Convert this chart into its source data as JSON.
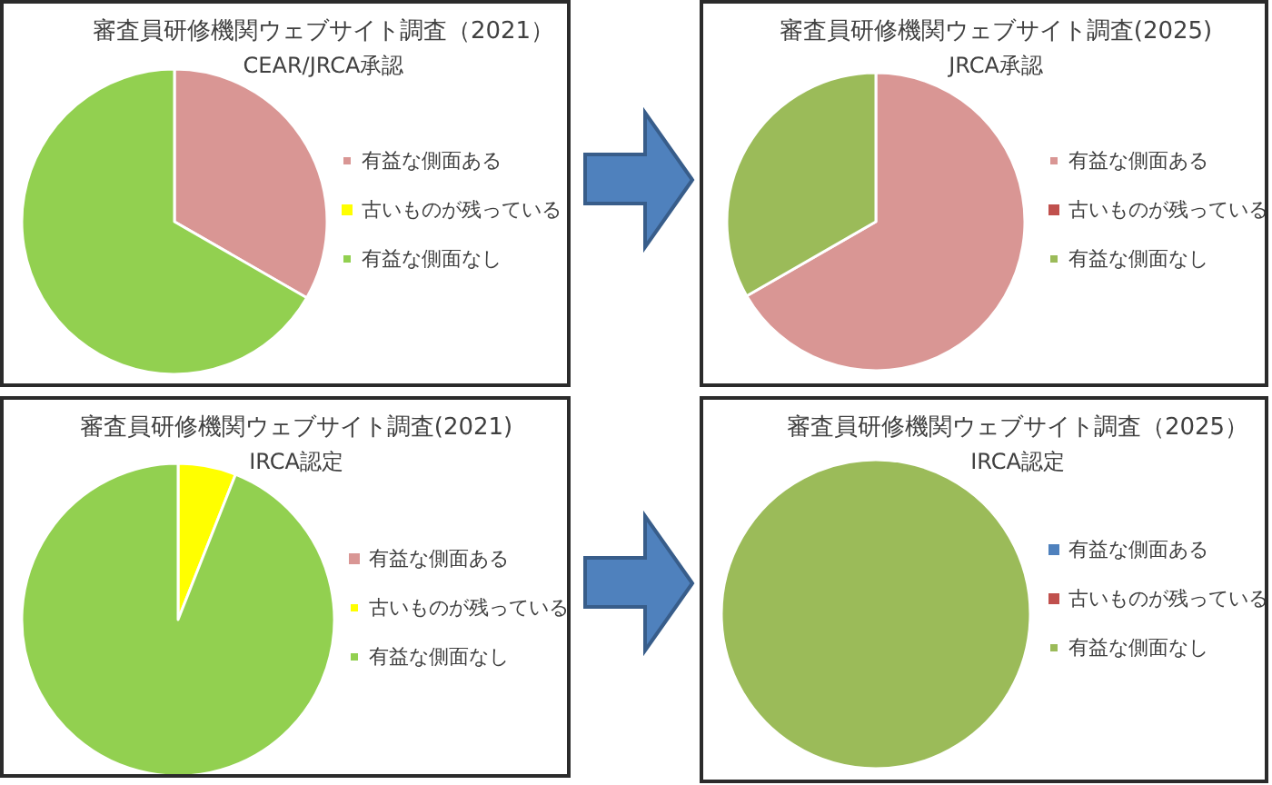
{
  "chart_data": [
    {
      "type": "pie",
      "title": "審査員研修機関ウェブサイト調査（2021）",
      "subtitle": "CEAR/JRCA承認",
      "categories": [
        "有益な側面ある",
        "古いものが残っている",
        "有益な側面なし"
      ],
      "values": [
        33.3,
        0,
        66.7
      ],
      "colors": [
        "#d99694",
        "#ffff00",
        "#92d050"
      ],
      "legend": "right"
    },
    {
      "type": "pie",
      "title": "審査員研修機関ウェブサイト調査(2025)",
      "subtitle": "JRCA承認",
      "categories": [
        "有益な側面ある",
        "古いものが残っている",
        "有益な側面なし"
      ],
      "values": [
        66.7,
        0,
        33.3
      ],
      "colors": [
        "#d99694",
        "#c0504d",
        "#9bbb59"
      ],
      "legend": "right"
    },
    {
      "type": "pie",
      "title": "審査員研修機関ウェブサイト調査(2021)",
      "subtitle": "IRCA認定",
      "categories": [
        "有益な側面ある",
        "古いものが残っている",
        "有益な側面なし"
      ],
      "values": [
        0,
        6,
        94
      ],
      "colors": [
        "#d99694",
        "#ffff00",
        "#92d050"
      ],
      "legend": "right"
    },
    {
      "type": "pie",
      "title": "審査員研修機関ウェブサイト調査（2025）",
      "subtitle": "IRCA認定",
      "categories": [
        "有益な側面ある",
        "古いものが残っている",
        "有益な側面なし"
      ],
      "values": [
        0,
        0,
        100
      ],
      "colors": [
        "#4f81bd",
        "#c0504d",
        "#9bbb59"
      ],
      "legend": "right"
    }
  ]
}
